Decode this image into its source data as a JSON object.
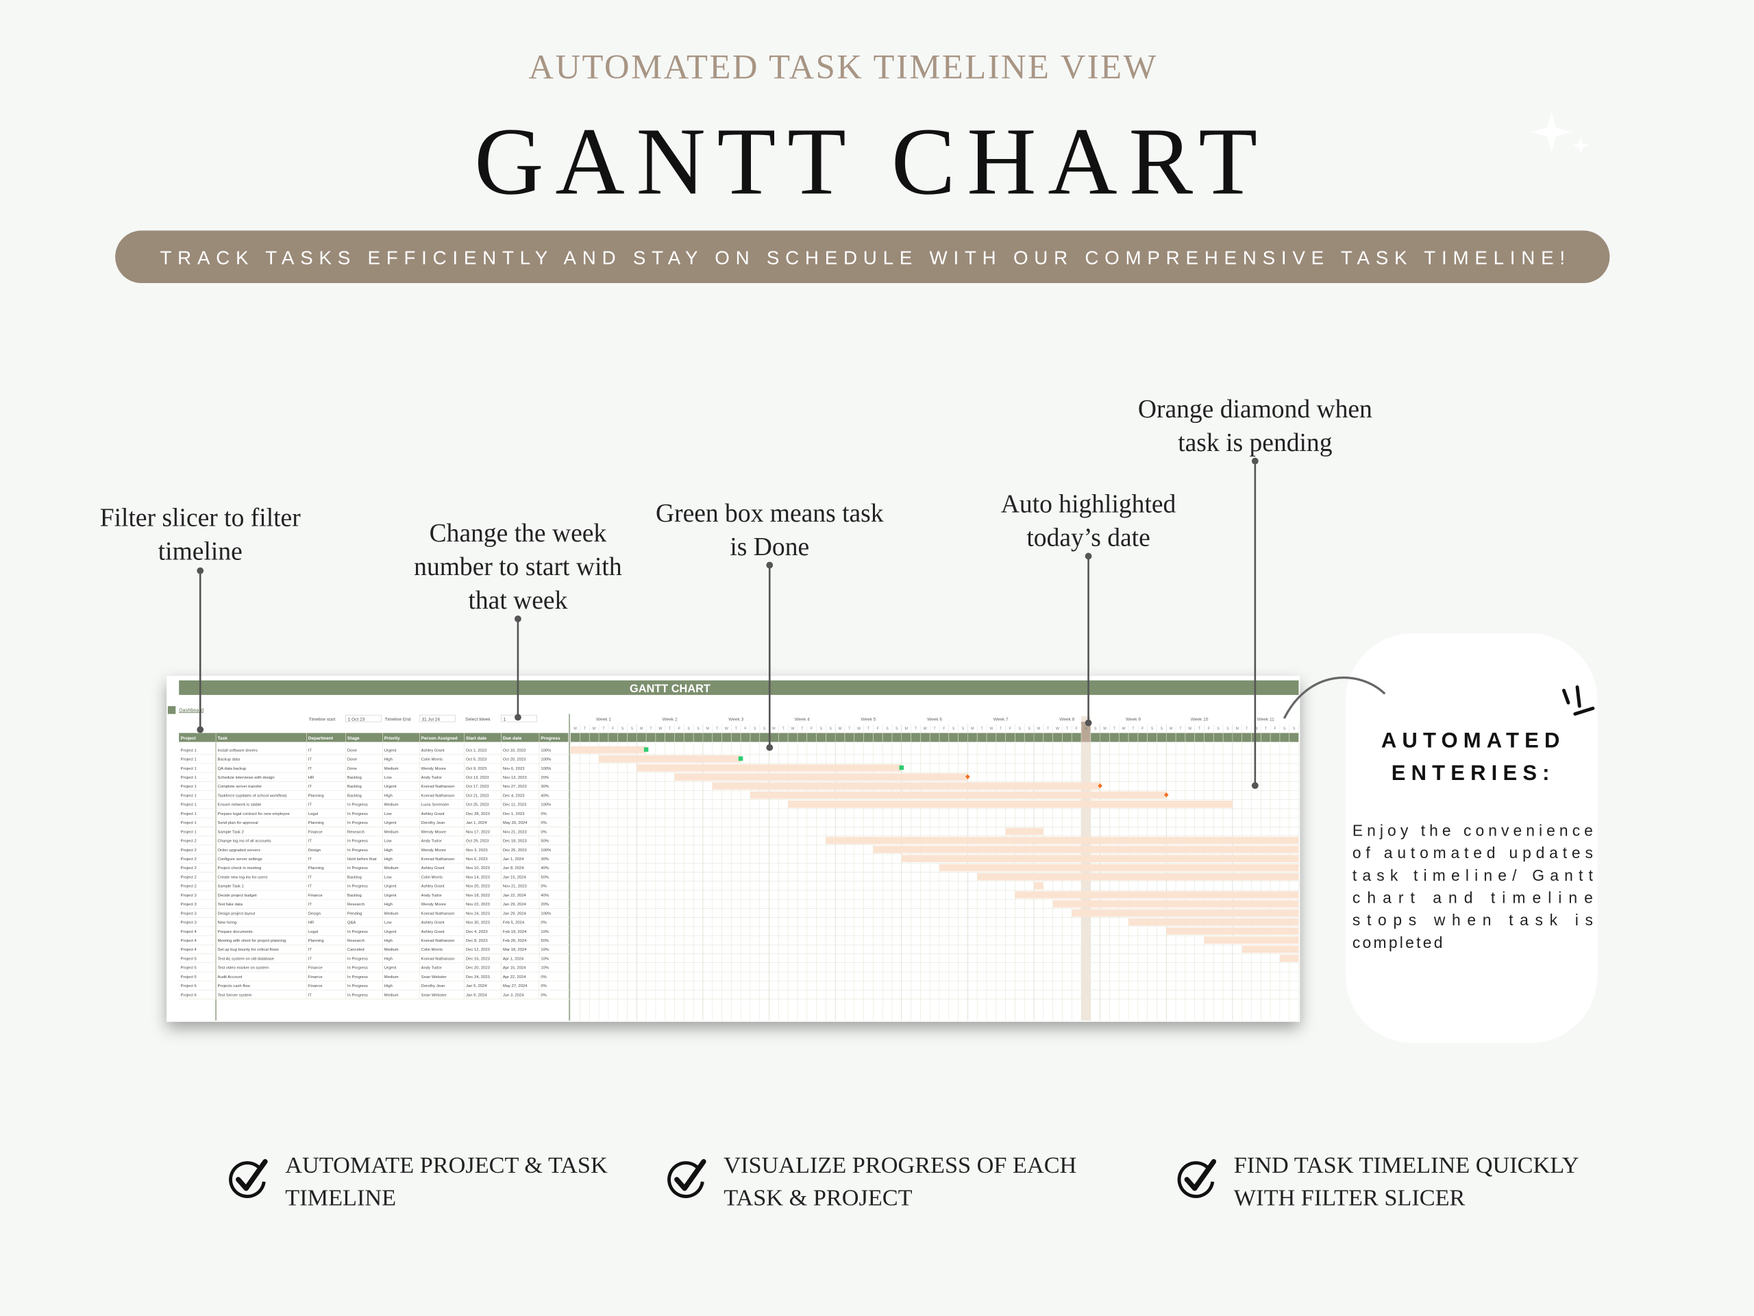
{
  "header": {
    "eyebrow": "AUTOMATED TASK TIMELINE VIEW",
    "title": "GANTT CHART",
    "banner": "TRACK TASKS EFFICIENTLY AND STAY ON SCHEDULE WITH OUR COMPREHENSIVE TASK TIMELINE!"
  },
  "annotations": [
    {
      "lines": [
        "Filter slicer to filter",
        "timeline"
      ]
    },
    {
      "lines": [
        "Change the week",
        "number to start with",
        "that week"
      ]
    },
    {
      "lines": [
        "Green box means task",
        "is Done"
      ]
    },
    {
      "lines": [
        "Auto highlighted",
        "today’s date"
      ]
    },
    {
      "lines": [
        "Orange diamond when",
        "task is pending"
      ]
    }
  ],
  "sheet": {
    "title": "GANTT CHART",
    "dashboard": "Dashboard",
    "controls": [
      "Timeline start",
      "1 Oct 23",
      "Timeline End",
      "31 Jul 24",
      "Select Week",
      "1"
    ],
    "weeks": [
      "Week 1",
      "Week 2",
      "Week 3",
      "Week 4",
      "Week 5",
      "Week 6",
      "Week 7",
      "Week 8",
      "Week 9",
      "Week 10",
      "Week 11"
    ],
    "weekdays": [
      "M",
      "T",
      "W",
      "T",
      "F",
      "S",
      "S"
    ],
    "columns": [
      "Project",
      "Task",
      "Department",
      "Stage",
      "Priority",
      "Person Assigned",
      "Start date",
      "Due date",
      "Progress"
    ],
    "rows": [
      [
        "Project 1",
        "Install software drivers",
        "IT",
        "Done",
        "Urgent",
        "Ashley Grant",
        "Oct 1, 2023",
        "Oct 10, 2023",
        "100%"
      ],
      [
        "Project 1",
        "Backup data",
        "IT",
        "Done",
        "High",
        "Colin Morris",
        "Oct 5, 2023",
        "Oct 20, 2023",
        "100%"
      ],
      [
        "Project 1",
        "QA data backup",
        "IT",
        "Done",
        "Medium",
        "Wendy Moore",
        "Oct 9, 2023",
        "Nov 6, 2023",
        "100%"
      ],
      [
        "Project 1",
        "Schedule interviews with design",
        "HR",
        "Backlog",
        "Low",
        "Andy Tudor",
        "Oct 13, 2023",
        "Nov 13, 2023",
        "20%"
      ],
      [
        "Project 1",
        "Complete server transfer",
        "IT",
        "Backlog",
        "Urgent",
        "Konrad Nathanson",
        "Oct 17, 2023",
        "Nov 27, 2023",
        "30%"
      ],
      [
        "Project 1",
        "Taskforce (updates of school workflow)",
        "Planning",
        "Backlog",
        "High",
        "Konrad Nathanson",
        "Oct 21, 2023",
        "Dec 4, 2023",
        "40%"
      ],
      [
        "Project 1",
        "Ensure network is stable",
        "IT",
        "In Progress",
        "Medium",
        "Lucia Sorensen",
        "Oct 25, 2023",
        "Dec 11, 2023",
        "100%"
      ],
      [
        "Project 1",
        "Prepare legal contract for new employee",
        "Legal",
        "In Progress",
        "Low",
        "Ashley Grant",
        "Dec 28, 2023",
        "Dec 1, 2023",
        "0%"
      ],
      [
        "Project 1",
        "Send plan for approval",
        "Planning",
        "In Progress",
        "Urgent",
        "Dorothy Jean",
        "Jan 1, 2024",
        "May 20, 2024",
        "0%"
      ],
      [
        "Project 1",
        "Sample Task 2",
        "Finance",
        "Research",
        "Medium",
        "Wendy Moore",
        "Nov 17, 2023",
        "Nov 21, 2023",
        "0%"
      ],
      [
        "Project 2",
        "Change log ins of all accounts",
        "IT",
        "In Progress",
        "Low",
        "Andy Tudor",
        "Oct 29, 2023",
        "Dec 18, 2023",
        "50%"
      ],
      [
        "Project 2",
        "Order upgraded servers",
        "Design",
        "In Progress",
        "High",
        "Wendy Moore",
        "Nov 3, 2023",
        "Dec 25, 2023",
        "100%"
      ],
      [
        "Project 2",
        "Configure server settings",
        "IT",
        "Hold before final",
        "High",
        "Konrad Nathanson",
        "Nov 6, 2023",
        "Jan 1, 2024",
        "30%"
      ],
      [
        "Project 2",
        "Project check in meeting",
        "Planning",
        "In Progress",
        "Medium",
        "Ashley Grant",
        "Nov 10, 2023",
        "Jan 8, 2024",
        "40%"
      ],
      [
        "Project 2",
        "Create new log ins for users",
        "IT",
        "Backlog",
        "Low",
        "Colin Morris",
        "Nov 14, 2023",
        "Jan 15, 2024",
        "50%"
      ],
      [
        "Project 2",
        "Sample Task 1",
        "IT",
        "In Progress",
        "Urgent",
        "Ashley Grant",
        "Nov 20, 2023",
        "Nov 21, 2023",
        "0%"
      ],
      [
        "Project 3",
        "Decide project budget",
        "Finance",
        "Backlog",
        "Urgent",
        "Andy Tudor",
        "Nov 18, 2023",
        "Jan 22, 2024",
        "40%"
      ],
      [
        "Project 3",
        "Test fake data",
        "IT",
        "Research",
        "High",
        "Wendy Moore",
        "Nov 22, 2023",
        "Jan 29, 2024",
        "20%"
      ],
      [
        "Project 3",
        "Design project layout",
        "Design",
        "Pending",
        "Medium",
        "Konrad Nathanson",
        "Nov 24, 2023",
        "Jan 29, 2024",
        "100%"
      ],
      [
        "Project 3",
        "New hiring",
        "HR",
        "Q&A",
        "Low",
        "Ashley Grant",
        "Nov 30, 2023",
        "Feb 5, 2024",
        "0%"
      ],
      [
        "Project 4",
        "Prepare documents",
        "Legal",
        "In Progress",
        "Urgent",
        "Ashley Grant",
        "Dec 4, 2023",
        "Feb 19, 2024",
        "10%"
      ],
      [
        "Project 4",
        "Meeting with client for project planning",
        "Planning",
        "Research",
        "High",
        "Konrad Nathanson",
        "Dec 8, 2023",
        "Feb 26, 2024",
        "50%"
      ],
      [
        "Project 4",
        "Set up bug bounty for critical flows",
        "IT",
        "Canceled",
        "Medium",
        "Colin Morris",
        "Dec 12, 2023",
        "Mar 18, 2024",
        "10%"
      ],
      [
        "Project 5",
        "Test AL system on old database",
        "IT",
        "In Progress",
        "High",
        "Konrad Nathanson",
        "Dec 16, 2023",
        "Apr 1, 2024",
        "10%"
      ],
      [
        "Project 5",
        "Test video marker on system",
        "Finance",
        "In Progress",
        "Urgent",
        "Andy Tudor",
        "Dec 20, 2023",
        "Apr 15, 2024",
        "10%"
      ],
      [
        "Project 5",
        "Audit Account",
        "Finance",
        "In Progress",
        "Medium",
        "Sean Webster",
        "Dec 24, 2023",
        "Apr 22, 2024",
        "0%"
      ],
      [
        "Project 6",
        "Projects cash flow",
        "Finance",
        "In Progress",
        "High",
        "Dorothy Jean",
        "Jan 5, 2024",
        "May 27, 2024",
        "0%"
      ],
      [
        "Project 6",
        "Test Server system",
        "IT",
        "In Progress",
        "Medium",
        "Sean Webster",
        "Jan 9, 2024",
        "Jun 3, 2024",
        "0%"
      ]
    ]
  },
  "card": {
    "title_lines": [
      "AUTOMATED",
      "ENTERIES:"
    ],
    "body_lines": [
      "Enjoy the convenience",
      "of automated updates",
      "task timeline/ Gantt",
      "chart and timeline",
      "stops when task is",
      "completed"
    ]
  },
  "features": [
    {
      "lines": [
        "AUTOMATE PROJECT & TASK",
        "TIMELINE"
      ]
    },
    {
      "lines": [
        "VISUALIZE PROGRESS OF EACH",
        "TASK & PROJECT"
      ]
    },
    {
      "lines": [
        "FIND TASK TIMELINE QUICKLY",
        "WITH FILTER SLICER"
      ]
    }
  ]
}
